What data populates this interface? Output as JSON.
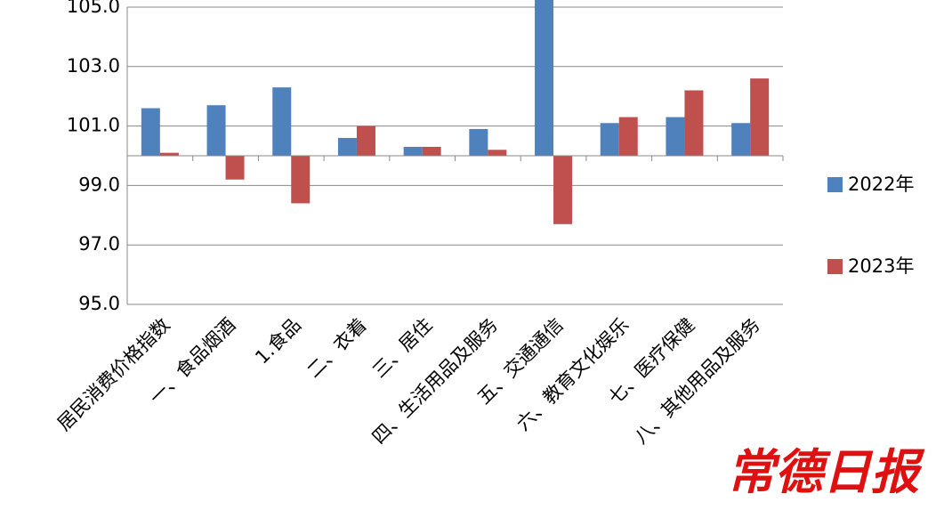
{
  "chart_data": {
    "type": "bar",
    "categories": [
      "居民消费价格指数",
      "一、食品烟酒",
      "1.食品",
      "二、衣着",
      "三、居住",
      "四、生活用品及服务",
      "五、交通通信",
      "六、教育文化娱乐",
      "七、医疗保健",
      "八、其他用品及服务"
    ],
    "series": [
      {
        "name": "2022年",
        "color": "#4f81bd",
        "values": [
          101.6,
          101.7,
          102.3,
          100.6,
          100.3,
          100.9,
          105.5,
          101.1,
          101.3,
          101.1
        ]
      },
      {
        "name": "2023年",
        "color": "#c0504d",
        "values": [
          100.1,
          99.2,
          98.4,
          101.0,
          100.3,
          100.2,
          97.7,
          101.3,
          102.2,
          102.6
        ]
      }
    ],
    "ylim": [
      95,
      105
    ],
    "yticks": [
      {
        "value": 95,
        "label": "95.0"
      },
      {
        "value": 97,
        "label": "97.0"
      },
      {
        "value": 99,
        "label": "99.0"
      },
      {
        "value": 101,
        "label": "101.0"
      },
      {
        "value": 103,
        "label": "103.0"
      },
      {
        "value": 105,
        "label": "105.0"
      }
    ],
    "x_axis_crosses": 100,
    "grid": true,
    "legend": "right",
    "watermark": "常德日报"
  }
}
